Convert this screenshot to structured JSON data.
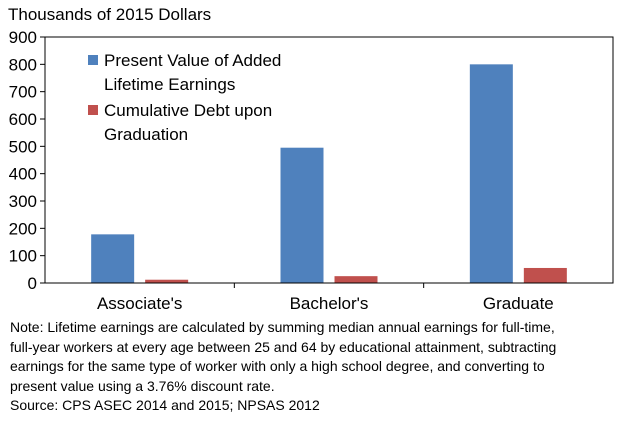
{
  "chart_data": {
    "type": "bar",
    "ylabel": "Thousands of 2015 Dollars",
    "xlabel": "",
    "categories": [
      "Associate's",
      "Bachelor's",
      "Graduate"
    ],
    "series": [
      {
        "name": "Present Value of Added Lifetime Earnings",
        "color": "#4f81bd",
        "values": [
          178,
          495,
          800
        ]
      },
      {
        "name": "Cumulative Debt upon Graduation",
        "color": "#c0504d",
        "values": [
          12,
          25,
          55
        ]
      }
    ],
    "ylim": [
      0,
      900
    ],
    "yticks": [
      "0",
      "100",
      "200",
      "300",
      "400",
      "500",
      "600",
      "700",
      "800",
      "900"
    ],
    "legend": "top-left",
    "grid": false
  },
  "note": {
    "lines": [
      "Note: Lifetime earnings are calculated by summing median annual earnings for full-time,",
      "full-year workers at every age between 25 and 64 by educational attainment, subtracting",
      "earnings for the same type of worker with only a high school degree, and converting to",
      "present value using a 3.76% discount rate."
    ],
    "source": "Source: CPS ASEC 2014 and 2015; NPSAS 2012"
  }
}
